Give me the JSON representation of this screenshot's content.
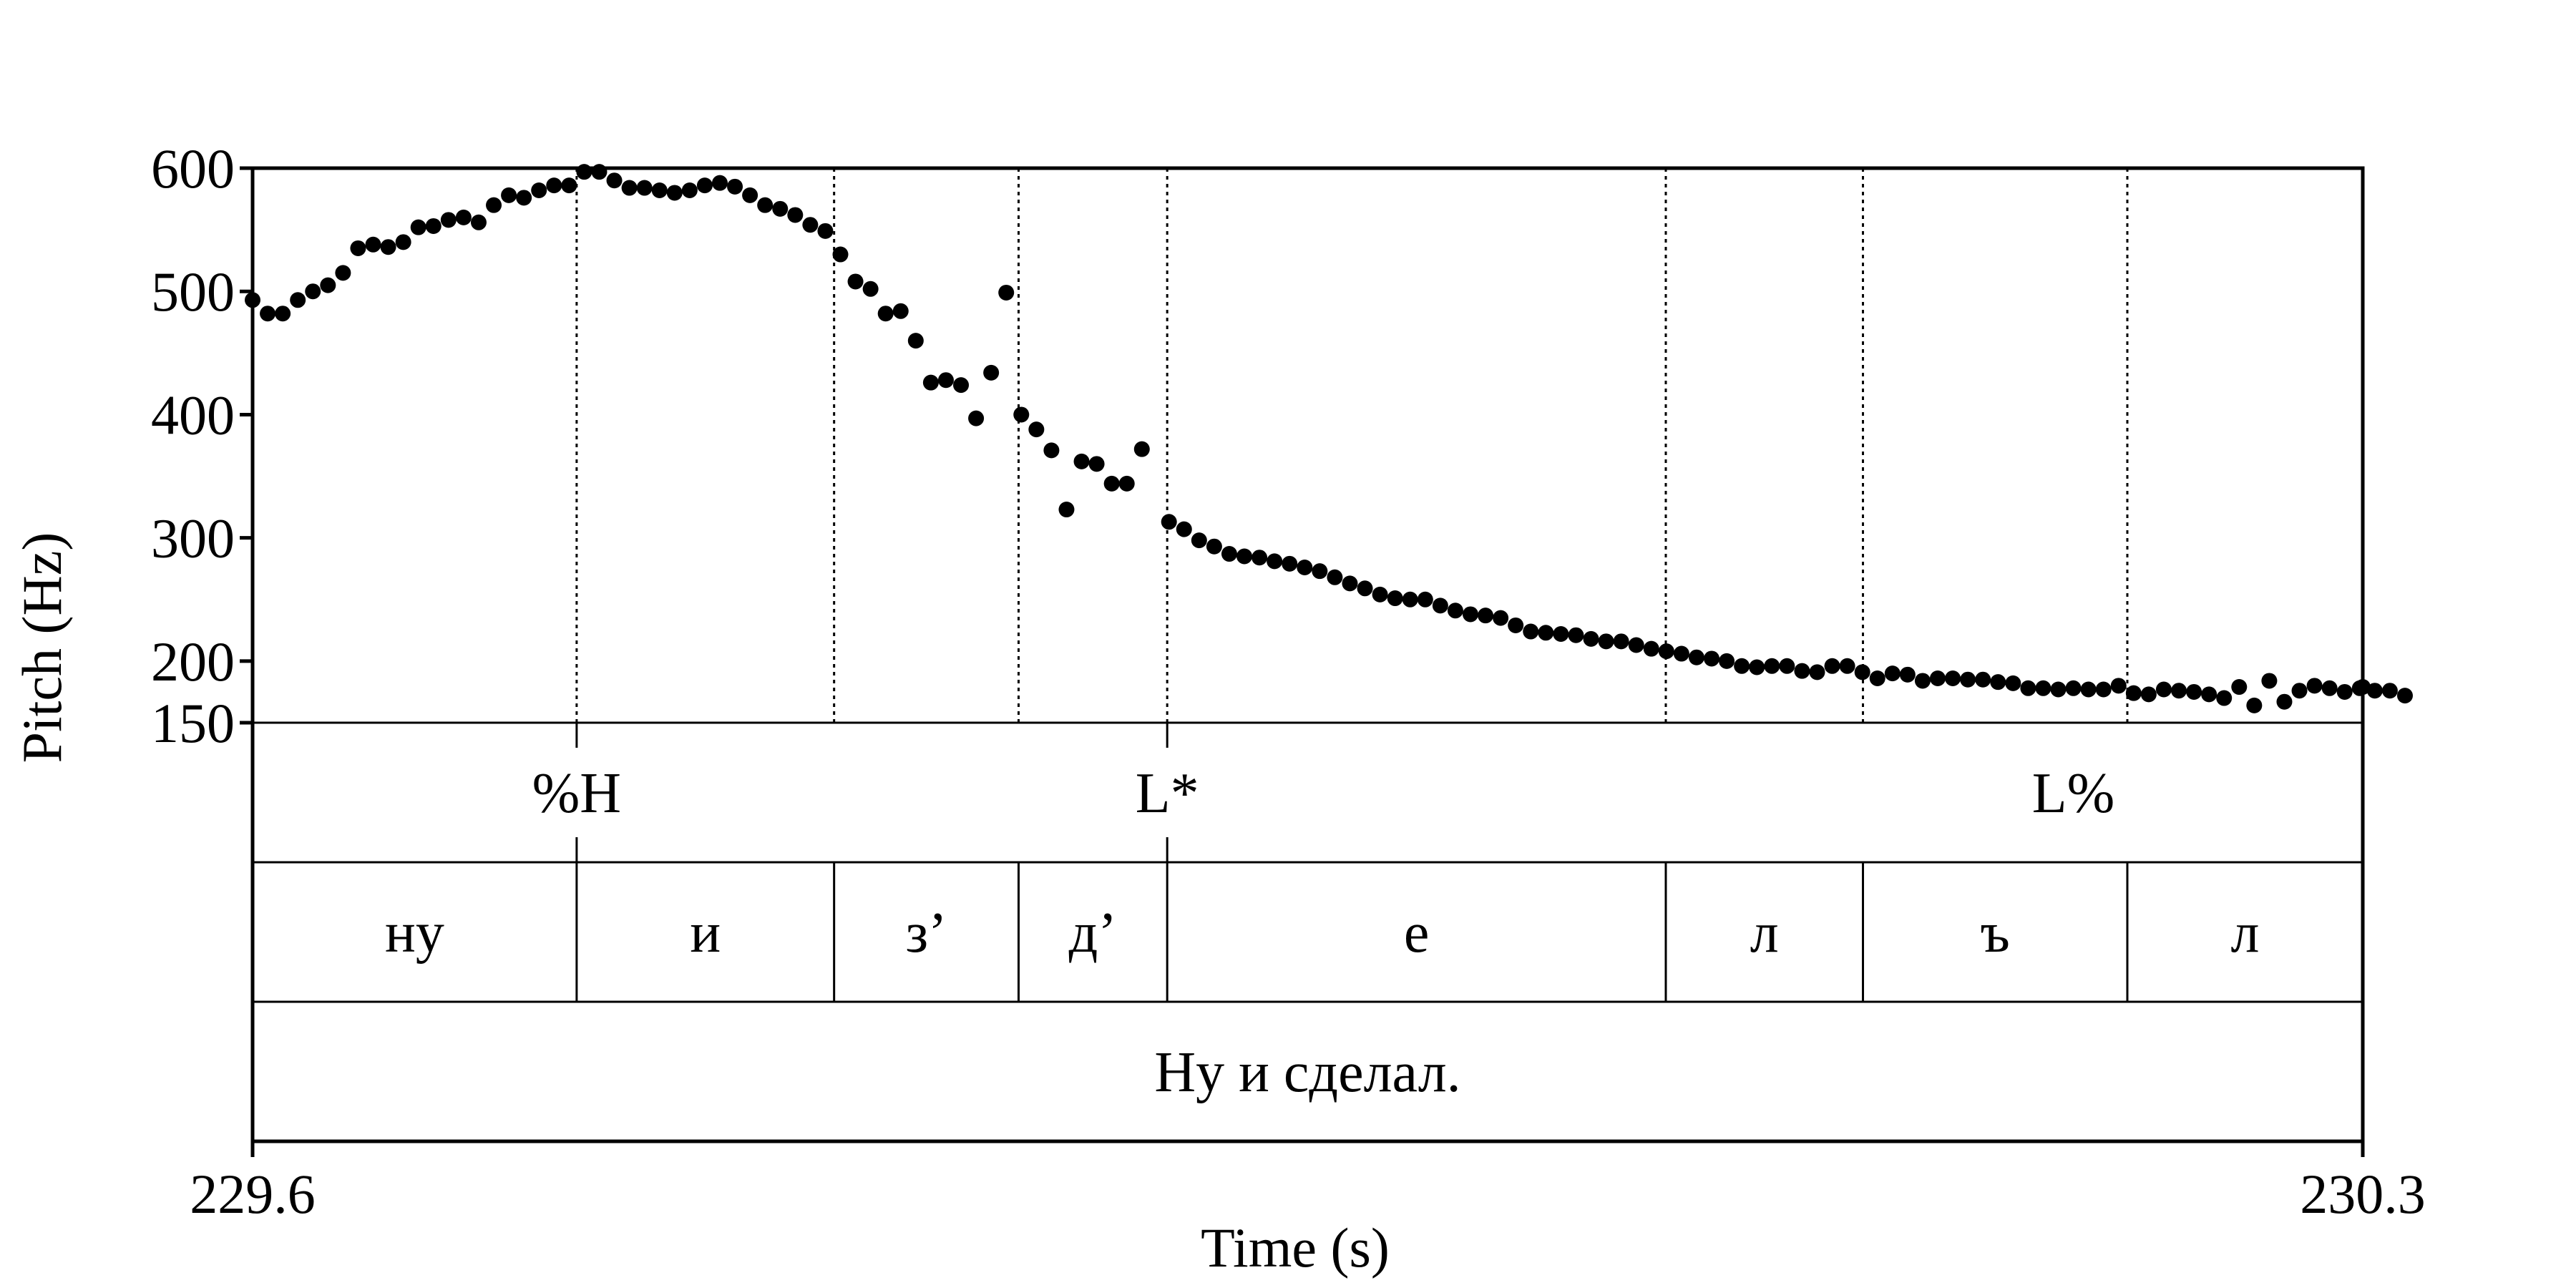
{
  "chart_data": {
    "type": "scatter",
    "xlabel": "Time (s)",
    "ylabel": "Pitch (Hz)",
    "xlim": [
      229.6,
      230.3
    ],
    "ylim": [
      150,
      600
    ],
    "x_ticks": [
      "229.6",
      "230.3"
    ],
    "y_ticks": [
      150,
      200,
      300,
      400,
      500,
      600
    ],
    "points": [
      [
        229.6,
        493
      ],
      [
        229.605,
        482
      ],
      [
        229.61,
        482
      ],
      [
        229.615,
        493
      ],
      [
        229.62,
        500
      ],
      [
        229.625,
        505
      ],
      [
        229.63,
        515
      ],
      [
        229.635,
        535
      ],
      [
        229.64,
        538
      ],
      [
        229.645,
        536
      ],
      [
        229.65,
        540
      ],
      [
        229.655,
        552
      ],
      [
        229.66,
        553
      ],
      [
        229.665,
        558
      ],
      [
        229.67,
        560
      ],
      [
        229.675,
        556
      ],
      [
        229.68,
        570
      ],
      [
        229.685,
        578
      ],
      [
        229.69,
        576
      ],
      [
        229.695,
        582
      ],
      [
        229.7,
        586
      ],
      [
        229.705,
        586
      ],
      [
        229.71,
        597
      ],
      [
        229.715,
        597
      ],
      [
        229.72,
        590
      ],
      [
        229.725,
        584
      ],
      [
        229.73,
        584
      ],
      [
        229.735,
        582
      ],
      [
        229.74,
        580
      ],
      [
        229.745,
        582
      ],
      [
        229.75,
        586
      ],
      [
        229.755,
        588
      ],
      [
        229.76,
        585
      ],
      [
        229.765,
        578
      ],
      [
        229.77,
        570
      ],
      [
        229.775,
        567
      ],
      [
        229.78,
        562
      ],
      [
        229.785,
        554
      ],
      [
        229.79,
        549
      ],
      [
        229.795,
        530
      ],
      [
        229.8,
        508
      ],
      [
        229.805,
        502
      ],
      [
        229.81,
        482
      ],
      [
        229.815,
        484
      ],
      [
        229.82,
        460
      ],
      [
        229.825,
        426
      ],
      [
        229.83,
        428
      ],
      [
        229.835,
        424
      ],
      [
        229.84,
        397
      ],
      [
        229.845,
        434
      ],
      [
        229.85,
        499
      ],
      [
        229.855,
        400
      ],
      [
        229.86,
        388
      ],
      [
        229.865,
        371
      ],
      [
        229.87,
        323
      ],
      [
        229.875,
        362
      ],
      [
        229.88,
        360
      ],
      [
        229.885,
        344
      ],
      [
        229.89,
        344
      ],
      [
        229.895,
        372
      ],
      [
        229.904,
        313
      ],
      [
        229.909,
        307
      ],
      [
        229.914,
        298
      ],
      [
        229.919,
        293
      ],
      [
        229.924,
        287
      ],
      [
        229.929,
        285
      ],
      [
        229.934,
        284
      ],
      [
        229.939,
        281
      ],
      [
        229.944,
        279
      ],
      [
        229.949,
        276
      ],
      [
        229.954,
        273
      ],
      [
        229.959,
        268
      ],
      [
        229.964,
        263
      ],
      [
        229.969,
        259
      ],
      [
        229.974,
        254
      ],
      [
        229.979,
        251
      ],
      [
        229.984,
        250
      ],
      [
        229.989,
        250
      ],
      [
        229.994,
        245
      ],
      [
        229.999,
        241
      ],
      [
        230.004,
        238
      ],
      [
        230.009,
        237
      ],
      [
        230.014,
        235
      ],
      [
        230.019,
        229
      ],
      [
        230.024,
        224
      ],
      [
        230.029,
        223
      ],
      [
        230.034,
        222
      ],
      [
        230.039,
        221
      ],
      [
        230.044,
        218
      ],
      [
        230.049,
        216
      ],
      [
        230.054,
        216
      ],
      [
        230.059,
        213
      ],
      [
        230.064,
        210
      ],
      [
        230.069,
        208
      ],
      [
        230.074,
        206
      ],
      [
        230.079,
        203
      ],
      [
        230.084,
        202
      ],
      [
        230.089,
        200
      ],
      [
        230.094,
        196
      ],
      [
        230.099,
        195
      ],
      [
        230.104,
        196
      ],
      [
        230.109,
        196
      ],
      [
        230.114,
        192
      ],
      [
        230.119,
        191
      ],
      [
        230.124,
        196
      ],
      [
        230.129,
        196
      ],
      [
        230.134,
        191
      ],
      [
        230.139,
        186
      ],
      [
        230.144,
        190
      ],
      [
        230.149,
        189
      ],
      [
        230.154,
        184
      ],
      [
        230.159,
        186
      ],
      [
        230.164,
        186
      ],
      [
        230.169,
        185
      ],
      [
        230.174,
        185
      ],
      [
        230.179,
        183
      ],
      [
        230.184,
        182
      ],
      [
        230.189,
        178
      ],
      [
        230.194,
        178
      ],
      [
        230.199,
        177
      ],
      [
        230.204,
        178
      ],
      [
        230.209,
        177
      ],
      [
        230.214,
        177
      ],
      [
        230.219,
        180
      ],
      [
        230.224,
        174
      ],
      [
        230.229,
        173
      ],
      [
        230.234,
        177
      ],
      [
        230.239,
        176
      ],
      [
        230.244,
        175
      ],
      [
        230.249,
        173
      ],
      [
        230.254,
        170
      ],
      [
        230.259,
        179
      ],
      [
        230.264,
        164
      ],
      [
        230.269,
        184
      ],
      [
        230.274,
        167
      ],
      [
        230.279,
        176
      ],
      [
        230.284,
        180
      ],
      [
        230.289,
        178
      ],
      [
        230.294,
        175
      ],
      [
        230.299,
        178
      ],
      [
        230.304,
        176
      ],
      [
        230.309,
        176
      ],
      [
        230.314,
        172
      ],
      [
        230.3,
        179
      ]
    ],
    "tiers": {
      "tones": {
        "boundaries": [
          229.7075,
          229.9034
        ],
        "labels": [
          {
            "text": "%H",
            "x": 229.7075
          },
          {
            "text": "L*",
            "x": 229.9034
          },
          {
            "text": "L%",
            "x": 230.204
          }
        ]
      },
      "segments": {
        "boundaries": [
          229.6,
          229.7075,
          229.7929,
          229.8541,
          229.9034,
          230.0688,
          230.1342,
          230.2219,
          230.3
        ],
        "labels": [
          "ну",
          "и",
          "з’",
          "д’",
          "е",
          "л",
          "ъ",
          "л"
        ]
      },
      "sentence": {
        "text": "Ну и сделал."
      }
    },
    "plot_dotted_lines": [
      229.7075,
      229.7929,
      229.8541,
      229.9034,
      230.0688,
      230.1342,
      230.2219
    ],
    "grid": false
  }
}
